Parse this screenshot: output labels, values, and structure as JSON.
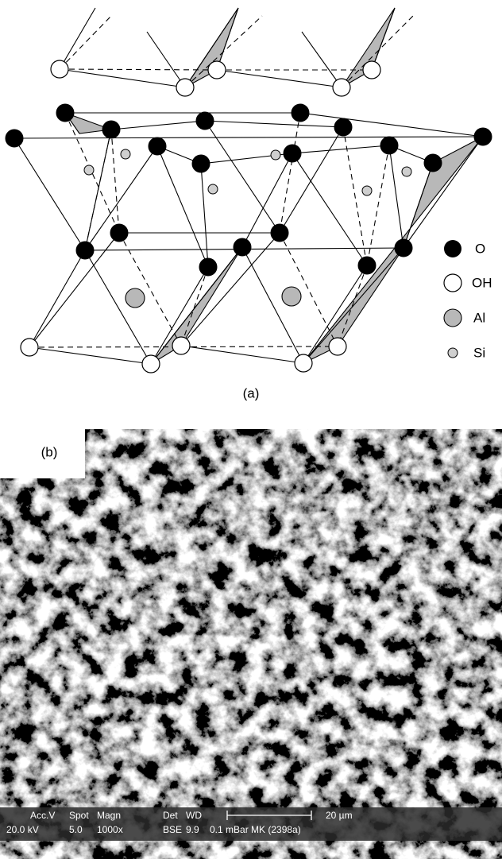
{
  "diagram_a": {
    "legend": [
      {
        "label": "O"
      },
      {
        "label": "OH"
      },
      {
        "label": "Al"
      },
      {
        "label": "Si"
      }
    ],
    "caption": "(a)"
  },
  "image_b": {
    "label": "(b)",
    "scale_bar": "20 µm",
    "info_bar": {
      "row1": [
        "Acc.V",
        "Spot",
        "Magn",
        "Det",
        "WD"
      ],
      "row2": [
        "20.0 kV",
        "5.0",
        "1000x",
        "BSE",
        "9.9",
        "0.1 mBar MK (2398a)"
      ]
    }
  }
}
